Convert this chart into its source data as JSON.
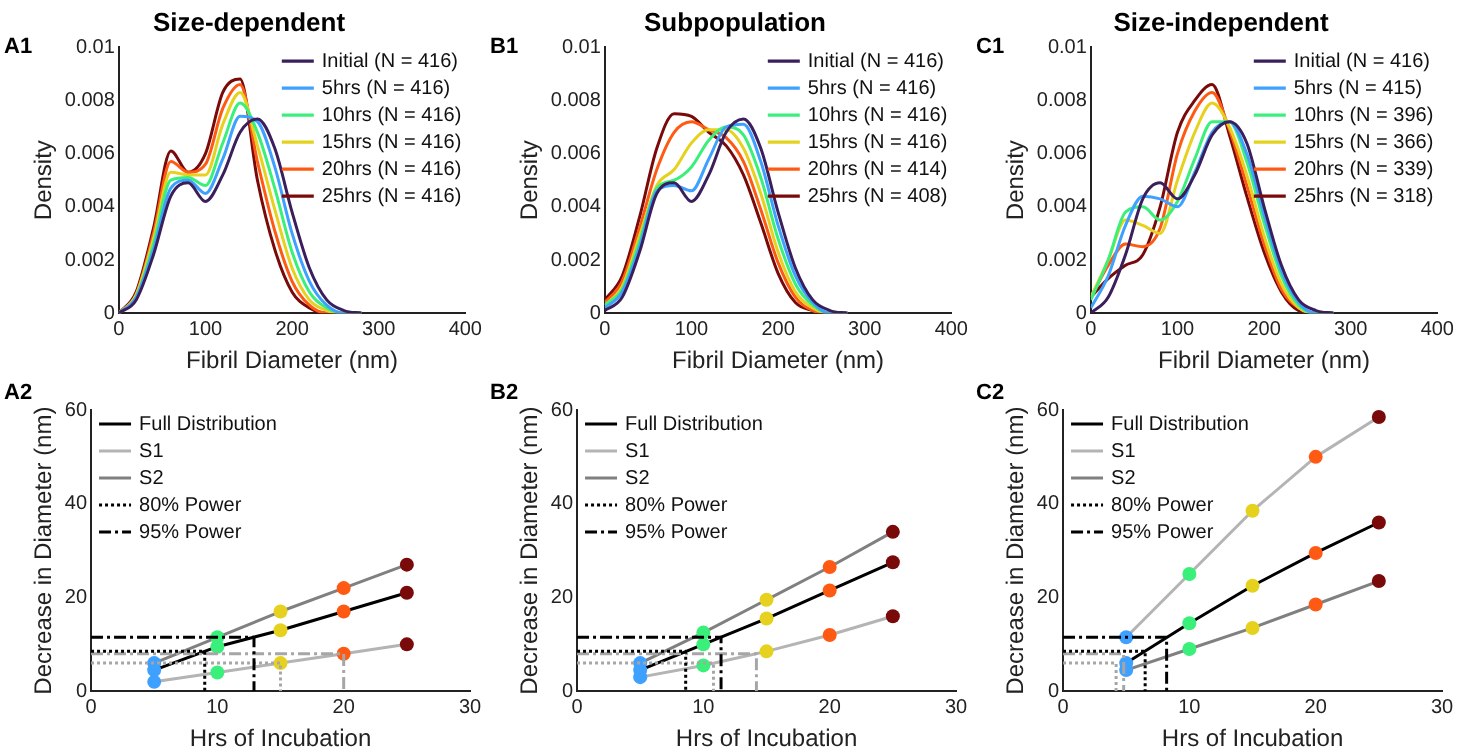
{
  "chart_data": [
    {
      "type": "line",
      "title": "Size-dependent",
      "annotations": [
        "A1"
      ],
      "xlabel": "Fibril Diameter (nm)",
      "ylabel": "Density",
      "xlim": [
        0,
        400
      ],
      "xticks": [
        0,
        100,
        200,
        300,
        400
      ],
      "ylim": [
        0,
        0.01
      ],
      "yticks": [
        0,
        0.002,
        0.004,
        0.006,
        0.008,
        0.01
      ],
      "legend": "top right",
      "marker": "none",
      "x": [
        0,
        20,
        40,
        60,
        80,
        100,
        120,
        140,
        160,
        180,
        200,
        220,
        240,
        260,
        280
      ],
      "series": [
        {
          "name": "Initial (N = 416)",
          "color": "#3b1f5c",
          "values": [
            0,
            0.0005,
            0.0022,
            0.0044,
            0.0049,
            0.0042,
            0.0052,
            0.0068,
            0.0073,
            0.0062,
            0.0038,
            0.0017,
            0.0005,
            0.0001,
            0
          ]
        },
        {
          "name": "5hrs (N = 416)",
          "color": "#3ea0ff",
          "values": [
            0,
            0.0006,
            0.0024,
            0.0047,
            0.005,
            0.0045,
            0.0058,
            0.0074,
            0.0072,
            0.0055,
            0.003,
            0.0012,
            0.0003,
            0,
            0
          ]
        },
        {
          "name": "10hrs (N = 416)",
          "color": "#3af07a",
          "values": [
            0,
            0.0006,
            0.0026,
            0.005,
            0.0051,
            0.0048,
            0.0064,
            0.0079,
            0.0068,
            0.0047,
            0.0023,
            0.0008,
            0.0002,
            0,
            0
          ]
        },
        {
          "name": "15hrs (N = 416)",
          "color": "#e6d21e",
          "values": [
            0,
            0.0007,
            0.0028,
            0.0053,
            0.0052,
            0.0052,
            0.0071,
            0.0083,
            0.0063,
            0.0039,
            0.0017,
            0.0005,
            0.0001,
            0,
            0
          ]
        },
        {
          "name": "20hrs (N = 416)",
          "color": "#ff5a14",
          "values": [
            0,
            0.0007,
            0.003,
            0.0057,
            0.0053,
            0.0056,
            0.0077,
            0.0086,
            0.0057,
            0.0031,
            0.0012,
            0.0003,
            0,
            0,
            0
          ]
        },
        {
          "name": "25hrs (N = 416)",
          "color": "#7a0a0a",
          "values": [
            0,
            0.0008,
            0.0032,
            0.0061,
            0.0053,
            0.006,
            0.0083,
            0.0088,
            0.005,
            0.0024,
            0.0008,
            0.0002,
            0,
            0,
            0
          ]
        }
      ]
    },
    {
      "type": "line",
      "title": "Subpopulation",
      "annotations": [
        "B1"
      ],
      "xlabel": "Fibril Diameter (nm)",
      "ylabel": "Density",
      "xlim": [
        0,
        400
      ],
      "xticks": [
        0,
        100,
        200,
        300,
        400
      ],
      "ylim": [
        0,
        0.01
      ],
      "yticks": [
        0,
        0.002,
        0.004,
        0.006,
        0.008,
        0.01
      ],
      "legend": "top right",
      "marker": "none",
      "x": [
        0,
        20,
        40,
        60,
        80,
        100,
        120,
        140,
        160,
        180,
        200,
        220,
        240,
        260,
        280
      ],
      "series": [
        {
          "name": "Initial (N = 416)",
          "color": "#3b1f5c",
          "values": [
            0.0001,
            0.0006,
            0.0023,
            0.0045,
            0.0049,
            0.0042,
            0.0052,
            0.0068,
            0.0073,
            0.0062,
            0.0038,
            0.0017,
            0.0005,
            0.0001,
            0
          ]
        },
        {
          "name": "5hrs (N = 416)",
          "color": "#3ea0ff",
          "values": [
            0.0002,
            0.0008,
            0.0025,
            0.0046,
            0.0048,
            0.0046,
            0.0058,
            0.007,
            0.0071,
            0.0057,
            0.0033,
            0.0014,
            0.0004,
            0,
            0
          ]
        },
        {
          "name": "10hrs (N = 416)",
          "color": "#3af07a",
          "values": [
            0.0003,
            0.0009,
            0.0027,
            0.0047,
            0.005,
            0.0055,
            0.0065,
            0.007,
            0.0067,
            0.0051,
            0.0028,
            0.0011,
            0.0003,
            0,
            0
          ]
        },
        {
          "name": "15hrs (N = 416)",
          "color": "#e6d21e",
          "values": [
            0.0003,
            0.001,
            0.0029,
            0.0048,
            0.0054,
            0.0064,
            0.0069,
            0.0069,
            0.0062,
            0.0045,
            0.0023,
            0.0008,
            0.0002,
            0,
            0
          ]
        },
        {
          "name": "20hrs (N = 414)",
          "color": "#ff5a14",
          "values": [
            0.0004,
            0.0012,
            0.0032,
            0.0054,
            0.0068,
            0.0072,
            0.0069,
            0.0066,
            0.0057,
            0.0039,
            0.0019,
            0.0006,
            0.0001,
            0,
            0
          ]
        },
        {
          "name": "25hrs (N = 408)",
          "color": "#7a0a0a",
          "values": [
            0.0005,
            0.0014,
            0.0036,
            0.0062,
            0.0075,
            0.0074,
            0.0068,
            0.0063,
            0.0052,
            0.0034,
            0.0015,
            0.0004,
            0.0001,
            0,
            0
          ]
        }
      ]
    },
    {
      "type": "line",
      "title": "Size-independent",
      "annotations": [
        "C1"
      ],
      "xlabel": "Fibril Diameter (nm)",
      "ylabel": "Density",
      "xlim": [
        0,
        400
      ],
      "xticks": [
        0,
        100,
        200,
        300,
        400
      ],
      "ylim": [
        0,
        0.01
      ],
      "yticks": [
        0,
        0.002,
        0.004,
        0.006,
        0.008,
        0.01
      ],
      "legend": "top right",
      "marker": "none",
      "x": [
        0,
        20,
        40,
        60,
        80,
        100,
        120,
        140,
        160,
        180,
        200,
        220,
        240,
        260,
        280
      ],
      "series": [
        {
          "name": "Initial (N = 416)",
          "color": "#3b1f5c",
          "values": [
            0,
            0.0006,
            0.0022,
            0.0043,
            0.0049,
            0.0043,
            0.0052,
            0.0067,
            0.0072,
            0.0064,
            0.004,
            0.0018,
            0.0005,
            0.0001,
            0
          ]
        },
        {
          "name": "5hrs (N = 415)",
          "color": "#3ea0ff",
          "values": [
            0.0002,
            0.0014,
            0.0033,
            0.0044,
            0.0043,
            0.004,
            0.0053,
            0.0068,
            0.0072,
            0.006,
            0.0037,
            0.0016,
            0.0004,
            0,
            0
          ]
        },
        {
          "name": "10hrs (N = 396)",
          "color": "#3af07a",
          "values": [
            0.0005,
            0.002,
            0.0038,
            0.004,
            0.0035,
            0.0042,
            0.0058,
            0.0072,
            0.0072,
            0.0057,
            0.0034,
            0.0014,
            0.0003,
            0,
            0
          ]
        },
        {
          "name": "15hrs (N = 366)",
          "color": "#e6d21e",
          "values": [
            0.0006,
            0.002,
            0.0035,
            0.0033,
            0.003,
            0.005,
            0.0068,
            0.0079,
            0.007,
            0.0052,
            0.0029,
            0.0011,
            0.0002,
            0,
            0
          ]
        },
        {
          "name": "20hrs (N = 339)",
          "color": "#ff5a14",
          "values": [
            0.0006,
            0.0018,
            0.0026,
            0.0025,
            0.0032,
            0.006,
            0.0076,
            0.0083,
            0.0069,
            0.0048,
            0.0026,
            0.0009,
            0.0002,
            0,
            0
          ]
        },
        {
          "name": "25hrs (N = 318)",
          "color": "#7a0a0a",
          "values": [
            0.0006,
            0.0013,
            0.0018,
            0.0022,
            0.004,
            0.0068,
            0.008,
            0.0086,
            0.0067,
            0.0044,
            0.0023,
            0.0008,
            0.0001,
            0,
            0
          ]
        }
      ]
    },
    {
      "type": "line",
      "annotations": [
        "A2"
      ],
      "xlabel": "Hrs of Incubation",
      "ylabel": "Decrease in Diameter (nm)",
      "xlim": [
        0,
        30
      ],
      "xticks": [
        0,
        10,
        20,
        30
      ],
      "ylim": [
        0,
        60
      ],
      "yticks": [
        0,
        20,
        40,
        60
      ],
      "legend": "top left",
      "series": [
        {
          "name": "Full Distribution",
          "color": "#000000",
          "marker": "circle",
          "x": [
            5,
            10,
            15,
            20,
            25
          ],
          "values": [
            4.5,
            9.5,
            13,
            17,
            21
          ],
          "colors": [
            "#3ea0ff",
            "#3af07a",
            "#e6d21e",
            "#ff5a14",
            "#7a0a0a"
          ]
        },
        {
          "name": "S1",
          "color": "#b4b4b4",
          "marker": "circle",
          "x": [
            5,
            10,
            15,
            20,
            25
          ],
          "values": [
            2,
            4,
            6,
            8,
            10
          ],
          "colors": [
            "#3ea0ff",
            "#3af07a",
            "#e6d21e",
            "#ff5a14",
            "#7a0a0a"
          ]
        },
        {
          "name": "S2",
          "color": "#808080",
          "marker": "circle",
          "x": [
            5,
            10,
            15,
            20,
            25
          ],
          "values": [
            6,
            11.5,
            17,
            22,
            27
          ],
          "colors": [
            "#3ea0ff",
            "#3af07a",
            "#e6d21e",
            "#ff5a14",
            "#7a0a0a"
          ]
        },
        {
          "name": "80% Power",
          "color": "#000000",
          "marker": "none",
          "line_style": "dotted",
          "x": [
            0,
            9,
            9
          ],
          "values": [
            8.5,
            8.5,
            0
          ]
        },
        {
          "name": "95% Power",
          "color": "#000000",
          "marker": "none",
          "line_style": "dashed",
          "x": [
            0,
            12.9,
            12.9
          ],
          "values": [
            11.5,
            11.5,
            0
          ]
        },
        {
          "color": "#a6a6a6",
          "marker": "none",
          "line_style": "dotted",
          "x": [
            0,
            15,
            15
          ],
          "values": [
            6,
            6,
            0
          ]
        },
        {
          "color": "#a6a6a6",
          "marker": "none",
          "line_style": "dashed",
          "x": [
            0,
            20,
            20
          ],
          "values": [
            8,
            8,
            0
          ]
        }
      ]
    },
    {
      "type": "line",
      "annotations": [
        "B2"
      ],
      "xlabel": "Hrs of Incubation",
      "ylabel": "Decrease in Diameter (nm)",
      "xlim": [
        0,
        30
      ],
      "xticks": [
        0,
        10,
        20,
        30
      ],
      "ylim": [
        0,
        60
      ],
      "yticks": [
        0,
        20,
        40,
        60
      ],
      "legend": "top left",
      "series": [
        {
          "name": "Full Distribution",
          "color": "#000000",
          "marker": "circle",
          "x": [
            5,
            10,
            15,
            20,
            25
          ],
          "values": [
            4.5,
            10,
            15.5,
            21.5,
            27.5
          ],
          "colors": [
            "#3ea0ff",
            "#3af07a",
            "#e6d21e",
            "#ff5a14",
            "#7a0a0a"
          ]
        },
        {
          "name": "S1",
          "color": "#b4b4b4",
          "marker": "circle",
          "x": [
            5,
            10,
            15,
            20,
            25
          ],
          "values": [
            3,
            5.5,
            8.5,
            12,
            16
          ],
          "colors": [
            "#3ea0ff",
            "#3af07a",
            "#e6d21e",
            "#ff5a14",
            "#7a0a0a"
          ]
        },
        {
          "name": "S2",
          "color": "#808080",
          "marker": "circle",
          "x": [
            5,
            10,
            15,
            20,
            25
          ],
          "values": [
            6,
            12.5,
            19.5,
            26.5,
            34
          ],
          "colors": [
            "#3ea0ff",
            "#3af07a",
            "#e6d21e",
            "#ff5a14",
            "#7a0a0a"
          ]
        },
        {
          "name": "80% Power",
          "color": "#000000",
          "marker": "none",
          "line_style": "dotted",
          "x": [
            0,
            8.6,
            8.6
          ],
          "values": [
            8.5,
            8.5,
            0
          ]
        },
        {
          "name": "95% Power",
          "color": "#000000",
          "marker": "none",
          "line_style": "dashed",
          "x": [
            0,
            11.4,
            11.4
          ],
          "values": [
            11.5,
            11.5,
            0
          ]
        },
        {
          "color": "#a6a6a6",
          "marker": "none",
          "line_style": "dotted",
          "x": [
            0,
            10.8,
            10.8
          ],
          "values": [
            6,
            6,
            0
          ]
        },
        {
          "color": "#a6a6a6",
          "marker": "none",
          "line_style": "dashed",
          "x": [
            0,
            14.2,
            14.2
          ],
          "values": [
            8,
            8,
            0
          ]
        }
      ]
    },
    {
      "type": "line",
      "annotations": [
        "C2"
      ],
      "xlabel": "Hrs of Incubation",
      "ylabel": "Decrease in Diameter (nm)",
      "xlim": [
        0,
        30
      ],
      "xticks": [
        0,
        10,
        20,
        30
      ],
      "ylim": [
        0,
        60
      ],
      "yticks": [
        0,
        20,
        40,
        60
      ],
      "legend": "top left",
      "series": [
        {
          "name": "Full Distribution",
          "color": "#000000",
          "marker": "circle",
          "x": [
            5,
            10,
            15,
            20,
            25
          ],
          "values": [
            6,
            14.5,
            22.5,
            29.5,
            36
          ],
          "colors": [
            "#3ea0ff",
            "#3af07a",
            "#e6d21e",
            "#ff5a14",
            "#7a0a0a"
          ]
        },
        {
          "name": "S1",
          "color": "#b4b4b4",
          "marker": "circle",
          "x": [
            5,
            10,
            15,
            20,
            25
          ],
          "values": [
            11.5,
            25,
            38.5,
            50,
            58.5
          ],
          "colors": [
            "#3ea0ff",
            "#3af07a",
            "#e6d21e",
            "#ff5a14",
            "#7a0a0a"
          ]
        },
        {
          "name": "S2",
          "color": "#808080",
          "marker": "circle",
          "x": [
            5,
            10,
            15,
            20,
            25
          ],
          "values": [
            4.5,
            9,
            13.5,
            18.5,
            23.5
          ],
          "colors": [
            "#3ea0ff",
            "#3af07a",
            "#e6d21e",
            "#ff5a14",
            "#7a0a0a"
          ]
        },
        {
          "name": "80% Power",
          "color": "#000000",
          "marker": "none",
          "line_style": "dotted",
          "x": [
            0,
            6.5,
            6.5
          ],
          "values": [
            8.5,
            8.5,
            0
          ]
        },
        {
          "name": "95% Power",
          "color": "#000000",
          "marker": "none",
          "line_style": "dashed",
          "x": [
            0,
            8.2,
            8.2
          ],
          "values": [
            11.5,
            11.5,
            0
          ]
        },
        {
          "color": "#a6a6a6",
          "marker": "none",
          "line_style": "dotted",
          "x": [
            0,
            4.2,
            4.2
          ],
          "values": [
            6,
            6,
            0
          ]
        },
        {
          "color": "#a6a6a6",
          "marker": "none",
          "line_style": "dashed",
          "x": [
            0,
            4.8,
            4.8
          ],
          "values": [
            8,
            8,
            0
          ]
        }
      ]
    }
  ]
}
